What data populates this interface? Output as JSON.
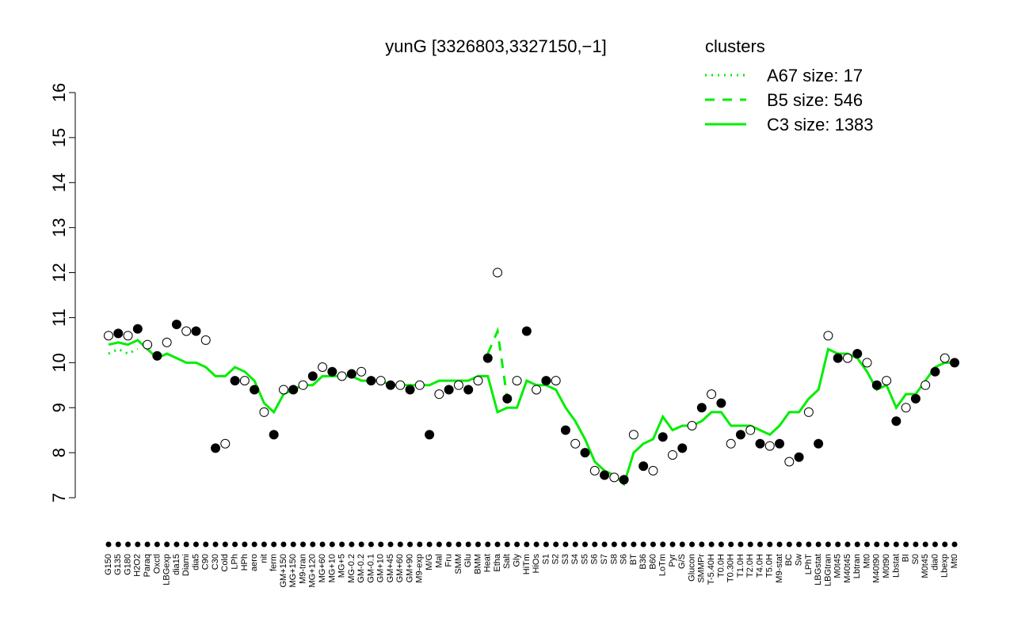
{
  "chart_data": {
    "type": "line",
    "title": "yunG [3326803,3327150,−1]",
    "legend_title": "clusters",
    "legend_color": "#00ee00",
    "ylim": [
      7,
      16
    ],
    "yticks": [
      7,
      8,
      9,
      10,
      11,
      12,
      13,
      14,
      15,
      16
    ],
    "categories": [
      "G150",
      "G135",
      "G180",
      "H2O2",
      "Paraq",
      "Oxctl",
      "LBGexp",
      "dia15",
      "Diami",
      "dia5",
      "C90",
      "C30",
      "Cold",
      "LPh",
      "HPh",
      "aero",
      "nit",
      "ferm",
      "GM+150",
      "MG+150",
      "M9-tran",
      "MG+120",
      "MG+60",
      "MG+10",
      "MG+5",
      "MG-0.2",
      "GM-0.2",
      "GM-0.1",
      "GM+10",
      "GM+45",
      "GM+60",
      "GM+90",
      "M9-exp",
      "M/G",
      "Mal",
      "Fru",
      "SMM",
      "Glu",
      "BMM",
      "Heat",
      "Etha",
      "Salt",
      "Gly",
      "HiTm",
      "HiOs",
      "S1",
      "S2",
      "S3",
      "S4",
      "S5",
      "S6",
      "S7",
      "S8",
      "S6",
      "BT",
      "B36",
      "B60",
      "LoTm",
      "Pyr",
      "G/S",
      "Glucon",
      "SMMPr",
      "T-5.40H",
      "T0.0H",
      "T0.30H",
      "T1.0H",
      "T2.0H",
      "T4.0H",
      "T5.0H",
      "M9-stat",
      "BC",
      "Sw",
      "LPhT",
      "LBGstat",
      "LBGtran",
      "M0t45",
      "M40t45",
      "Lbtran",
      "Mt0",
      "M40t90",
      "M0t90",
      "Lbstat",
      "BI",
      "S0",
      "M0t45",
      "dia0",
      "Lbexp",
      "Mt0"
    ],
    "point_values": [
      10.6,
      10.65,
      10.6,
      10.75,
      10.4,
      10.15,
      10.45,
      10.85,
      10.7,
      10.7,
      10.5,
      8.1,
      8.2,
      9.6,
      9.6,
      9.4,
      8.9,
      8.4,
      9.4,
      9.4,
      9.5,
      9.7,
      9.9,
      9.8,
      9.7,
      9.75,
      9.8,
      9.6,
      9.6,
      9.5,
      9.5,
      9.4,
      9.5,
      8.4,
      9.3,
      9.4,
      9.5,
      9.4,
      9.6,
      10.1,
      12,
      9.2,
      9.6,
      10.7,
      9.4,
      9.6,
      9.6,
      8.5,
      8.2,
      8,
      7.6,
      7.5,
      7.45,
      7.4,
      8.4,
      7.7,
      7.6,
      8.35,
      7.95,
      8.1,
      8.6,
      9,
      9.3,
      9.1,
      8.2,
      8.4,
      8.5,
      8.2,
      8.15,
      8.2,
      7.8,
      7.9,
      8.9,
      8.2,
      10.6,
      10.1,
      10.1,
      10.2,
      10,
      9.5,
      9.6,
      8.7,
      9,
      9.2,
      9.5,
      9.8,
      10.1,
      10
    ],
    "series": [
      {
        "name": "A67 size: 17",
        "color": "#00ee00",
        "style": "dotted",
        "values": [
          10.2,
          10.3,
          10.2,
          10.3,
          null,
          null,
          null,
          null,
          null,
          null,
          null,
          null,
          null,
          null,
          null,
          null,
          null,
          null,
          null,
          null,
          null,
          null,
          null,
          null,
          null,
          null,
          null,
          null,
          null,
          null,
          null,
          null,
          null,
          null,
          null,
          null,
          null,
          null,
          null,
          null,
          null,
          null,
          null,
          null,
          null,
          null,
          null,
          null,
          null,
          null,
          null,
          null,
          null,
          null,
          null,
          null,
          null,
          null,
          null,
          null,
          null,
          null,
          null,
          null,
          null,
          null,
          null,
          null,
          null,
          null,
          null,
          null,
          null,
          null,
          null,
          null,
          null,
          null,
          null,
          null,
          null,
          null,
          null,
          null,
          null,
          null,
          null,
          null
        ]
      },
      {
        "name": "B5 size: 546",
        "color": "#00ee00",
        "style": "dashed",
        "values": [
          null,
          null,
          null,
          null,
          null,
          null,
          null,
          null,
          null,
          null,
          null,
          null,
          null,
          null,
          null,
          null,
          null,
          null,
          null,
          null,
          null,
          null,
          null,
          null,
          null,
          null,
          null,
          null,
          null,
          null,
          null,
          null,
          null,
          null,
          null,
          null,
          null,
          null,
          null,
          10.2,
          10.7,
          9.2,
          9.3,
          null,
          null,
          null,
          null,
          null,
          null,
          null,
          null,
          null,
          null,
          null,
          null,
          null,
          null,
          null,
          null,
          null,
          null,
          null,
          null,
          null,
          null,
          null,
          null,
          null,
          null,
          null,
          null,
          null,
          null,
          null,
          null,
          null,
          null,
          null,
          null,
          null,
          null,
          null,
          null,
          null,
          null,
          null,
          null,
          null
        ]
      },
      {
        "name": "C3 size: 1383",
        "color": "#00ee00",
        "style": "solid",
        "values": [
          10.4,
          10.45,
          10.4,
          10.5,
          10.3,
          10.1,
          10.2,
          10.1,
          10,
          10,
          9.9,
          9.7,
          9.7,
          9.9,
          9.8,
          9.6,
          9.1,
          8.9,
          9.3,
          9.4,
          9.5,
          9.5,
          9.7,
          9.7,
          9.7,
          9.7,
          9.6,
          9.6,
          9.6,
          9.5,
          9.5,
          9.5,
          9.5,
          9.5,
          9.6,
          9.6,
          9.6,
          9.6,
          9.7,
          9.7,
          8.9,
          9.0,
          9.0,
          9.6,
          9.5,
          9.5,
          9.4,
          9.0,
          8.7,
          8.3,
          7.8,
          7.6,
          7.5,
          7.3,
          8.0,
          8.2,
          8.3,
          8.8,
          8.5,
          8.6,
          8.6,
          8.7,
          8.9,
          8.9,
          8.6,
          8.6,
          8.6,
          8.5,
          8.4,
          8.6,
          8.9,
          8.9,
          9.2,
          9.4,
          10.3,
          10.2,
          10.2,
          10.1,
          9.8,
          9.4,
          9.5,
          9.0,
          9.3,
          9.3,
          9.6,
          9.9,
          10.0,
          10.0
        ]
      }
    ]
  }
}
